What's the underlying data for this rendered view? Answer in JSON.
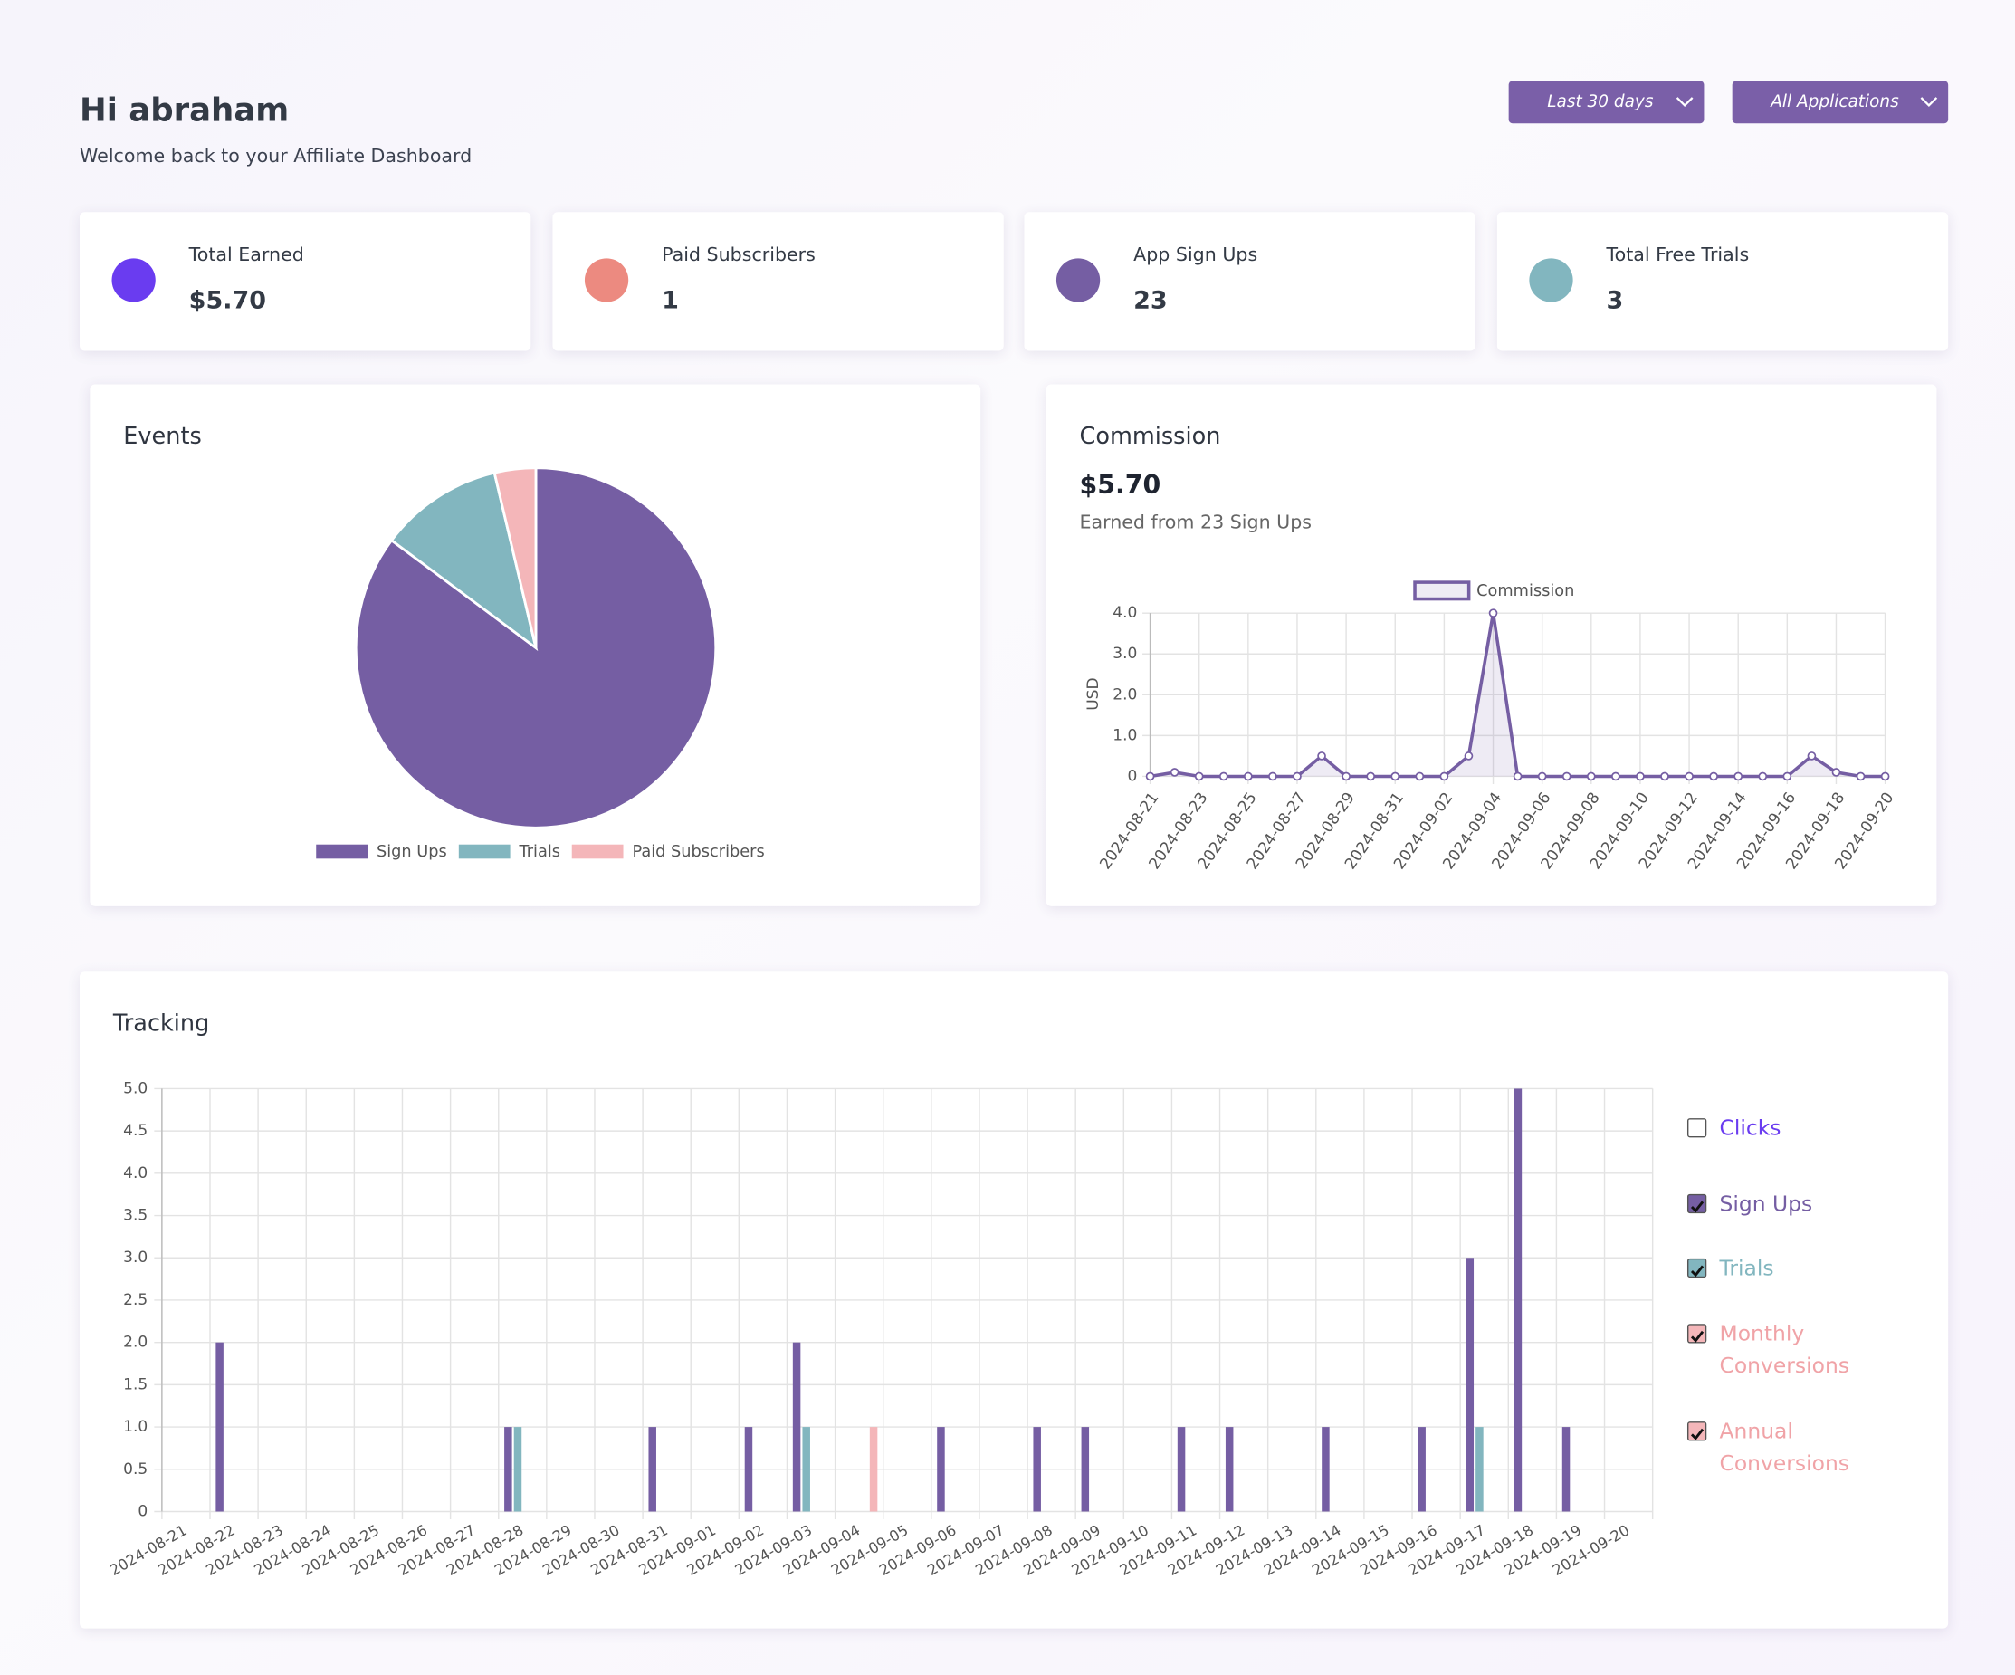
{
  "header": {
    "title": "Hi abraham",
    "subtitle": "Welcome back to your Affiliate Dashboard"
  },
  "filters": [
    "Last 30 days",
    "All Applications"
  ],
  "stats": [
    {
      "label": "Total Earned",
      "value": "$5.70",
      "color": "#6a3cf0"
    },
    {
      "label": "Paid Subscribers",
      "value": "1",
      "color": "#ec8a80"
    },
    {
      "label": "App Sign Ups",
      "value": "23",
      "color": "#755ea3"
    },
    {
      "label": "Total Free Trials",
      "value": "3",
      "color": "#82b6bf"
    }
  ],
  "chart_data": [
    {
      "type": "pie",
      "title": "Events",
      "categories": [
        "Sign Ups",
        "Trials",
        "Paid Subscribers"
      ],
      "values": [
        23,
        3,
        1
      ],
      "colors": [
        "#755ea3",
        "#82b6bf",
        "#f4b6b9"
      ]
    },
    {
      "type": "line",
      "title": "Commission",
      "amount": "$5.70",
      "subtitle": "Earned from 23 Sign Ups",
      "y_label": "USD",
      "x": [
        "2024-08-21",
        null,
        "2024-08-23",
        null,
        "2024-08-25",
        null,
        "2024-08-27",
        null,
        "2024-08-29",
        null,
        "2024-08-31",
        null,
        "2024-09-02",
        null,
        "2024-09-04",
        null,
        "2024-09-06",
        null,
        "2024-09-08",
        null,
        "2024-09-10",
        null,
        "2024-09-12",
        null,
        "2024-09-14",
        null,
        "2024-09-16",
        null,
        "2024-09-18",
        null,
        "2024-09-20"
      ],
      "series": [
        {
          "name": "Commission",
          "color": "#755ea3",
          "values": [
            0,
            0.1,
            0,
            0,
            0,
            0,
            0,
            0.5,
            0,
            0,
            0,
            0,
            0,
            0.5,
            4,
            0,
            0,
            0,
            0,
            0,
            0,
            0,
            0,
            0,
            0,
            0,
            0,
            0.5,
            0.1,
            0,
            0
          ]
        }
      ],
      "ylim": [
        0,
        4
      ],
      "yticks": [
        0,
        {
          "value": 1,
          "label": "1.0"
        },
        {
          "value": 2,
          "label": "2.0"
        },
        {
          "value": 3,
          "label": "3.0"
        },
        {
          "value": 4,
          "label": "4.0"
        }
      ],
      "grid": true,
      "legend": "top"
    },
    {
      "type": "bar",
      "title": "Tracking",
      "categories": [
        "2024-08-21",
        "2024-08-22",
        "2024-08-23",
        "2024-08-24",
        "2024-08-25",
        "2024-08-26",
        "2024-08-27",
        "2024-08-28",
        "2024-08-29",
        "2024-08-30",
        "2024-08-31",
        "2024-09-01",
        "2024-09-02",
        "2024-09-03",
        "2024-09-04",
        "2024-09-05",
        "2024-09-06",
        "2024-09-07",
        "2024-09-08",
        "2024-09-09",
        "2024-09-10",
        "2024-09-11",
        "2024-09-12",
        "2024-09-13",
        "2024-09-14",
        "2024-09-15",
        "2024-09-16",
        "2024-09-17",
        "2024-09-18",
        "2024-09-19",
        "2024-09-20"
      ],
      "hidden_series": [
        {
          "name": "Clicks",
          "color": "#6a3cf0"
        }
      ],
      "series": [
        {
          "name": "Sign Ups",
          "color": "#755ea3",
          "values": [
            0,
            2,
            0,
            0,
            0,
            0,
            0,
            1,
            0,
            0,
            1,
            0,
            1,
            2,
            0,
            0,
            1,
            0,
            1,
            1,
            0,
            1,
            1,
            0,
            1,
            0,
            1,
            3,
            5,
            1,
            0
          ]
        },
        {
          "name": "Trials",
          "color": "#82b6bf",
          "values": [
            0,
            0,
            0,
            0,
            0,
            0,
            0,
            1,
            0,
            0,
            0,
            0,
            0,
            1,
            0,
            0,
            0,
            0,
            0,
            0,
            0,
            0,
            0,
            0,
            0,
            0,
            0,
            1,
            0,
            0,
            0
          ]
        },
        {
          "name": "Monthly Conversions",
          "color": "#f4b6b9",
          "values": [
            0,
            0,
            0,
            0,
            0,
            0,
            0,
            0,
            0,
            0,
            0,
            0,
            0,
            0,
            0,
            0,
            0,
            0,
            0,
            0,
            0,
            0,
            0,
            0,
            0,
            0,
            0,
            0,
            0,
            0,
            0
          ]
        },
        {
          "name": "Annual Conversions",
          "color": "#f4b6b9",
          "values": [
            0,
            0,
            0,
            0,
            0,
            0,
            0,
            0,
            0,
            0,
            0,
            0,
            0,
            0,
            1,
            0,
            0,
            0,
            0,
            0,
            0,
            0,
            0,
            0,
            0,
            0,
            0,
            0,
            0,
            0,
            0
          ]
        }
      ],
      "ylim": [
        0,
        5
      ],
      "yticks": [
        0,
        0.5,
        {
          "value": 1,
          "label": "1.0"
        },
        1.5,
        {
          "value": 2,
          "label": "2.0"
        },
        2.5,
        {
          "value": 3,
          "label": "3.0"
        },
        3.5,
        {
          "value": 4,
          "label": "4.0"
        },
        4.5,
        {
          "value": 5,
          "label": "5.0"
        }
      ],
      "grid": true,
      "legend": "right"
    }
  ]
}
